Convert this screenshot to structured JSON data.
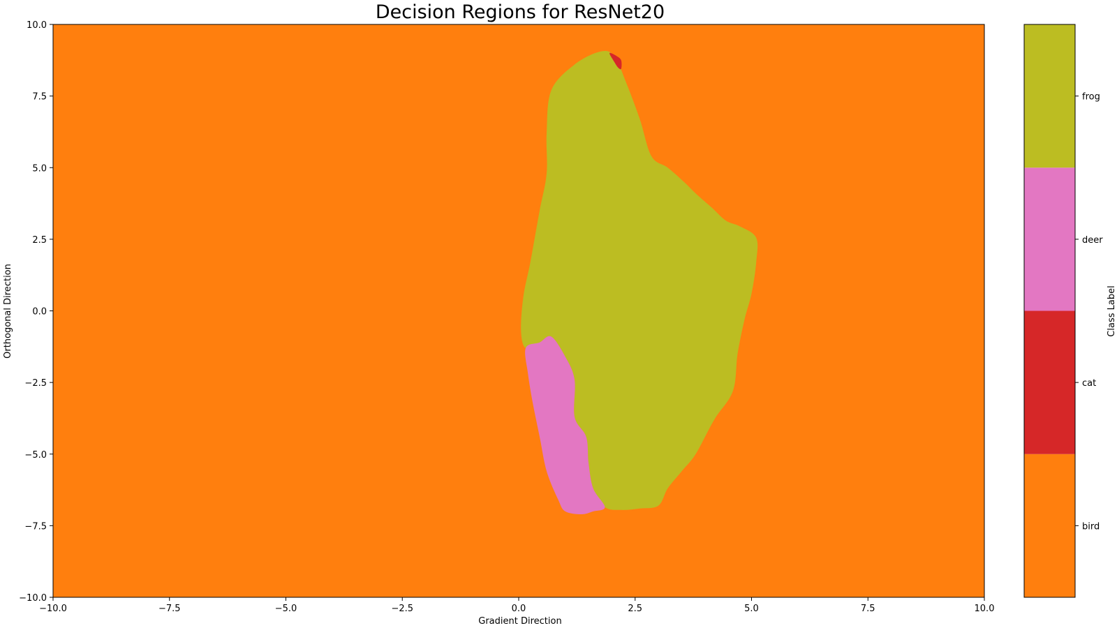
{
  "chart_data": {
    "type": "heatmap",
    "title": "Decision Regions for ResNet20",
    "xlabel": "Gradient Direction",
    "ylabel": "Orthogonal Direction",
    "xlim": [
      -10,
      10
    ],
    "ylim": [
      -10,
      10
    ],
    "xticks": [
      -10.0,
      -7.5,
      -5.0,
      -2.5,
      0.0,
      2.5,
      5.0,
      7.5,
      10.0
    ],
    "yticks": [
      -10.0,
      -7.5,
      -5.0,
      -2.5,
      0.0,
      2.5,
      5.0,
      7.5,
      10.0
    ],
    "xtick_labels": [
      "−10.0",
      "−7.5",
      "−5.0",
      "−2.5",
      "0.0",
      "2.5",
      "5.0",
      "7.5",
      "10.0"
    ],
    "ytick_labels": [
      "−10.0",
      "−7.5",
      "−5.0",
      "−2.5",
      "0.0",
      "2.5",
      "5.0",
      "7.5",
      "10.0"
    ],
    "background_class": "bird",
    "regions": [
      {
        "class": "frog",
        "outline": [
          [
            0.15,
            -1.3
          ],
          [
            0.05,
            -0.7
          ],
          [
            0.1,
            0.5
          ],
          [
            0.25,
            1.7
          ],
          [
            0.45,
            3.5
          ],
          [
            0.6,
            4.8
          ],
          [
            0.6,
            6.2
          ],
          [
            0.7,
            7.7
          ],
          [
            1.2,
            8.6
          ],
          [
            1.75,
            9.05
          ],
          [
            2.05,
            8.9
          ],
          [
            2.3,
            8.0
          ],
          [
            2.6,
            6.7
          ],
          [
            2.85,
            5.4
          ],
          [
            3.2,
            5.0
          ],
          [
            3.55,
            4.5
          ],
          [
            3.8,
            4.1
          ],
          [
            4.15,
            3.6
          ],
          [
            4.45,
            3.15
          ],
          [
            4.75,
            2.95
          ],
          [
            5.1,
            2.55
          ],
          [
            5.1,
            1.7
          ],
          [
            5.0,
            0.6
          ],
          [
            4.85,
            -0.3
          ],
          [
            4.7,
            -1.5
          ],
          [
            4.6,
            -2.8
          ],
          [
            4.2,
            -3.8
          ],
          [
            3.8,
            -5.0
          ],
          [
            3.5,
            -5.6
          ],
          [
            3.2,
            -6.2
          ],
          [
            3.0,
            -6.8
          ],
          [
            2.6,
            -6.9
          ],
          [
            2.2,
            -6.95
          ],
          [
            1.85,
            -6.85
          ],
          [
            1.6,
            -6.2
          ],
          [
            1.5,
            -5.3
          ],
          [
            1.45,
            -4.4
          ],
          [
            1.2,
            -3.7
          ],
          [
            1.2,
            -2.4
          ],
          [
            1.0,
            -1.6
          ],
          [
            0.7,
            -0.9
          ],
          [
            0.45,
            -1.1
          ]
        ]
      },
      {
        "class": "deer",
        "outline": [
          [
            0.15,
            -1.3
          ],
          [
            0.45,
            -1.1
          ],
          [
            0.7,
            -0.9
          ],
          [
            1.0,
            -1.6
          ],
          [
            1.2,
            -2.4
          ],
          [
            1.2,
            -3.7
          ],
          [
            1.45,
            -4.4
          ],
          [
            1.5,
            -5.3
          ],
          [
            1.6,
            -6.2
          ],
          [
            1.85,
            -6.85
          ],
          [
            1.6,
            -7.0
          ],
          [
            1.35,
            -7.1
          ],
          [
            1.0,
            -7.0
          ],
          [
            0.85,
            -6.6
          ],
          [
            0.6,
            -5.6
          ],
          [
            0.45,
            -4.4
          ],
          [
            0.3,
            -3.2
          ],
          [
            0.2,
            -2.2
          ]
        ]
      },
      {
        "class": "cat",
        "outline": [
          [
            1.95,
            9.0
          ],
          [
            2.1,
            8.9
          ],
          [
            2.2,
            8.75
          ],
          [
            2.2,
            8.45
          ],
          [
            2.13,
            8.5
          ],
          [
            2.05,
            8.7
          ]
        ]
      }
    ],
    "colorbar": {
      "label": "Class Label",
      "classes": [
        {
          "name": "bird",
          "color": "#ff7f0e"
        },
        {
          "name": "cat",
          "color": "#d62728"
        },
        {
          "name": "deer",
          "color": "#e377c2"
        },
        {
          "name": "frog",
          "color": "#bcbd22"
        }
      ]
    }
  }
}
